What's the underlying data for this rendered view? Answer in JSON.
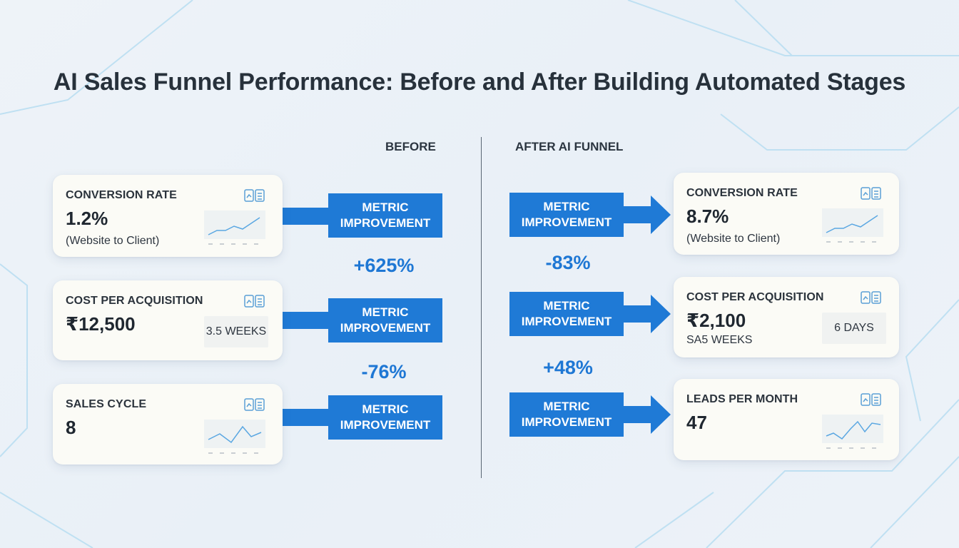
{
  "title": "AI Sales Funnel Performance: Before and After Building Automated Stages",
  "columns": {
    "before": "BEFORE",
    "after": "AFTER AI FUNNEL"
  },
  "metric_label_line1": "METRIC",
  "metric_label_line2": "IMPROVEMENT",
  "before_cards": [
    {
      "label": "CONVERSION RATE",
      "value": "1.2%",
      "sub": "(Website to Client)",
      "visual": "line-chart"
    },
    {
      "label": "COST PER ACQUISITION",
      "value": "₹12,500",
      "box": "3.5 WEEKS",
      "visual": "box"
    },
    {
      "label": "SALES CYCLE",
      "value": "8",
      "visual": "line-chart"
    }
  ],
  "after_cards": [
    {
      "label": "CONVERSION RATE",
      "value": "8.7%",
      "sub": "(Website to Client)",
      "visual": "line-chart"
    },
    {
      "label": "COST PER ACQUISITION",
      "value": "₹2,100",
      "sub": "SA5 WEEKS",
      "box": "6 DAYS",
      "visual": "box"
    },
    {
      "label": "LEADS PER MONTH",
      "value": "47",
      "visual": "line-chart"
    }
  ],
  "before_changes": [
    "+625%",
    "-76%"
  ],
  "after_changes": [
    "-83%",
    "+48%"
  ],
  "colors": {
    "accent": "#1f7ad6",
    "change_text": "#1e77d4",
    "card_bg": "#fbfbf6",
    "background": "#eef3f8",
    "bg_lines": "#bfe0f2"
  },
  "icons": {
    "card_icon": "dashboard-icon"
  }
}
